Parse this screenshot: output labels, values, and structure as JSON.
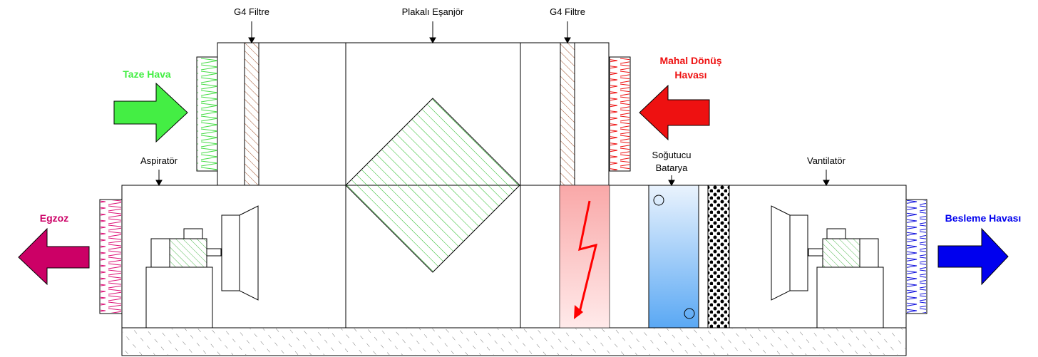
{
  "labels": {
    "g4_filter_left": "G4 Filtre",
    "plate_exchanger": "Plakalı Eşanjör",
    "g4_filter_right": "G4 Filtre",
    "cooling_coil_line1": "Soğutucu",
    "cooling_coil_line2": "Batarya",
    "fan_supply": "Vantilatör",
    "fan_exhaust": "Aspiratör"
  },
  "flows": {
    "fresh_air": "Taze Hava",
    "return_air_line1": "Mahal Dönüş",
    "return_air_line2": "Havası",
    "exhaust": "Egzoz",
    "supply_air": "Besleme Havası"
  },
  "colors": {
    "fresh": "#44ee44",
    "return": "#ee1111",
    "exhaust": "#cc0066",
    "supply": "#0000ee",
    "filter": "#a0522d",
    "exchanger": "#22bb22",
    "coil_top": "#eaf3fd",
    "coil_bottom": "#5aa8f4",
    "heater_top": "#f9a8a8",
    "heater_bottom": "#ffeaea"
  },
  "icons": {
    "fresh_arrow": "arrow-right-icon",
    "return_arrow": "arrow-left-icon",
    "exhaust_arrow": "arrow-left-icon",
    "supply_arrow": "arrow-right-icon",
    "heater": "lightning-bolt-icon",
    "exhaust_fan": "fan-icon",
    "supply_fan": "fan-icon",
    "exhaust_motor": "motor-icon",
    "supply_motor": "motor-icon"
  }
}
